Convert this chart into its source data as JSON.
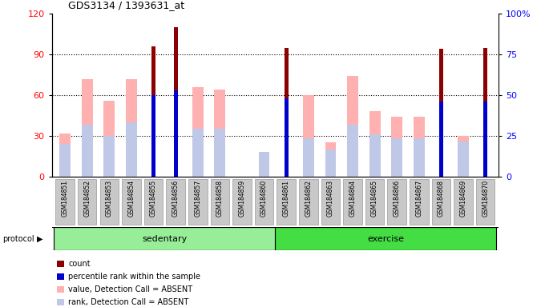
{
  "title": "GDS3134 / 1393631_at",
  "samples": [
    "GSM184851",
    "GSM184852",
    "GSM184853",
    "GSM184854",
    "GSM184855",
    "GSM184856",
    "GSM184857",
    "GSM184858",
    "GSM184859",
    "GSM184860",
    "GSM184861",
    "GSM184862",
    "GSM184863",
    "GSM184864",
    "GSM184865",
    "GSM184866",
    "GSM184867",
    "GSM184868",
    "GSM184869",
    "GSM184870"
  ],
  "count": [
    0,
    0,
    0,
    0,
    96,
    110,
    0,
    0,
    0,
    0,
    95,
    0,
    0,
    0,
    0,
    0,
    0,
    94,
    0,
    95
  ],
  "percentile_rank": [
    0,
    0,
    0,
    0,
    50,
    53,
    0,
    0,
    0,
    0,
    48,
    0,
    0,
    0,
    0,
    0,
    0,
    46,
    0,
    46
  ],
  "value_absent": [
    32,
    72,
    56,
    72,
    0,
    0,
    66,
    64,
    0,
    18,
    0,
    60,
    25,
    74,
    48,
    44,
    44,
    0,
    30,
    0
  ],
  "rank_absent": [
    24,
    38,
    30,
    40,
    0,
    0,
    35,
    35,
    0,
    18,
    0,
    28,
    20,
    38,
    31,
    28,
    28,
    0,
    26,
    0
  ],
  "ylim_left": [
    0,
    120
  ],
  "ylim_right": [
    0,
    100
  ],
  "yticks_left": [
    0,
    30,
    60,
    90,
    120
  ],
  "yticks_right": [
    0,
    25,
    50,
    75,
    100
  ],
  "color_count": "#8B0000",
  "color_percentile": "#0000CC",
  "color_value_absent": "#FFB0B0",
  "color_rank_absent": "#C0C8E8",
  "color_sedentary": "#98EE98",
  "color_exercise": "#44DD44",
  "color_tickbg": "#C8C8C8",
  "legend_labels": [
    "count",
    "percentile rank within the sample",
    "value, Detection Call = ABSENT",
    "rank, Detection Call = ABSENT"
  ]
}
